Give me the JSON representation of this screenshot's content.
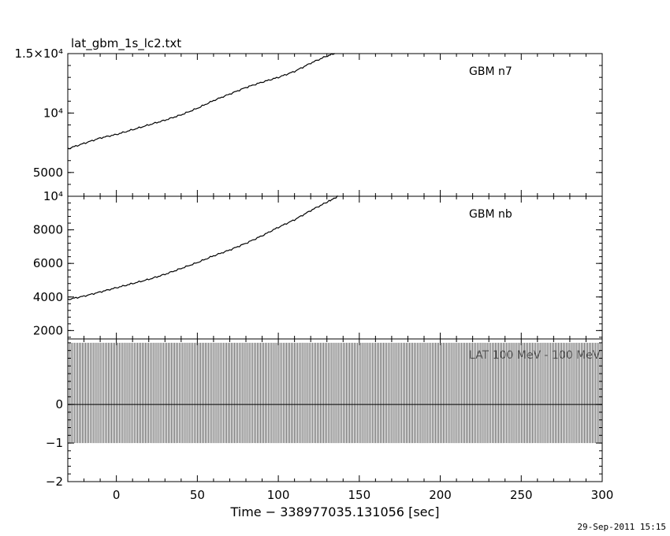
{
  "file_title": "lat_gbm_1s_lc2.txt",
  "timestamp": "29-Sep-2011 15:15",
  "chart_data": [
    {
      "type": "line",
      "panel": "top",
      "series": [
        {
          "name": "GBM n7",
          "x": [
            -30,
            -20,
            -10,
            0,
            10,
            20,
            30,
            40,
            50,
            60,
            70,
            80,
            90,
            100,
            110,
            120,
            130,
            135
          ],
          "values": [
            7000,
            7450,
            7900,
            8200,
            8600,
            9000,
            9400,
            9850,
            10400,
            11050,
            11600,
            12150,
            12600,
            13000,
            13500,
            14200,
            14800,
            15000
          ]
        }
      ],
      "xlim": [
        -30,
        300
      ],
      "ylim": [
        3000,
        15000
      ],
      "ytick_labels": [
        "1.5×10⁴",
        "10⁴",
        "5000"
      ],
      "yticks": [
        15000,
        10000,
        5000
      ]
    },
    {
      "type": "line",
      "panel": "middle",
      "series": [
        {
          "name": "GBM nb",
          "x": [
            -30,
            -20,
            -10,
            0,
            10,
            20,
            30,
            40,
            50,
            60,
            70,
            80,
            90,
            100,
            110,
            120,
            130,
            137
          ],
          "values": [
            3850,
            4050,
            4300,
            4550,
            4800,
            5050,
            5350,
            5700,
            6050,
            6450,
            6800,
            7200,
            7650,
            8150,
            8600,
            9150,
            9650,
            10000
          ]
        }
      ],
      "xlim": [
        -30,
        300
      ],
      "ylim": [
        1500,
        10000
      ],
      "ytick_labels": [
        "10⁴",
        "8000",
        "6000",
        "4000",
        "2000"
      ],
      "yticks": [
        10000,
        8000,
        6000,
        4000,
        2000
      ]
    },
    {
      "type": "line",
      "panel": "bottom",
      "series": [
        {
          "name": "LAT 100 MeV - 100 MeV",
          "description_values": {
            "upper_limit": 1.6,
            "lower_limit": -1.0,
            "value": 0
          }
        }
      ],
      "xlim": [
        -30,
        300
      ],
      "ylim": [
        -2,
        1.7
      ],
      "yticks": [
        0,
        -1,
        -2
      ],
      "ytick_labels": [
        "0",
        "−1",
        "−2"
      ],
      "xticks": [
        0,
        50,
        100,
        150,
        200,
        250,
        300
      ],
      "xtick_labels": [
        "0",
        "50",
        "100",
        "150",
        "200",
        "250",
        "300"
      ],
      "xlabel": "Time − 338977035.131056 [sec]"
    }
  ]
}
